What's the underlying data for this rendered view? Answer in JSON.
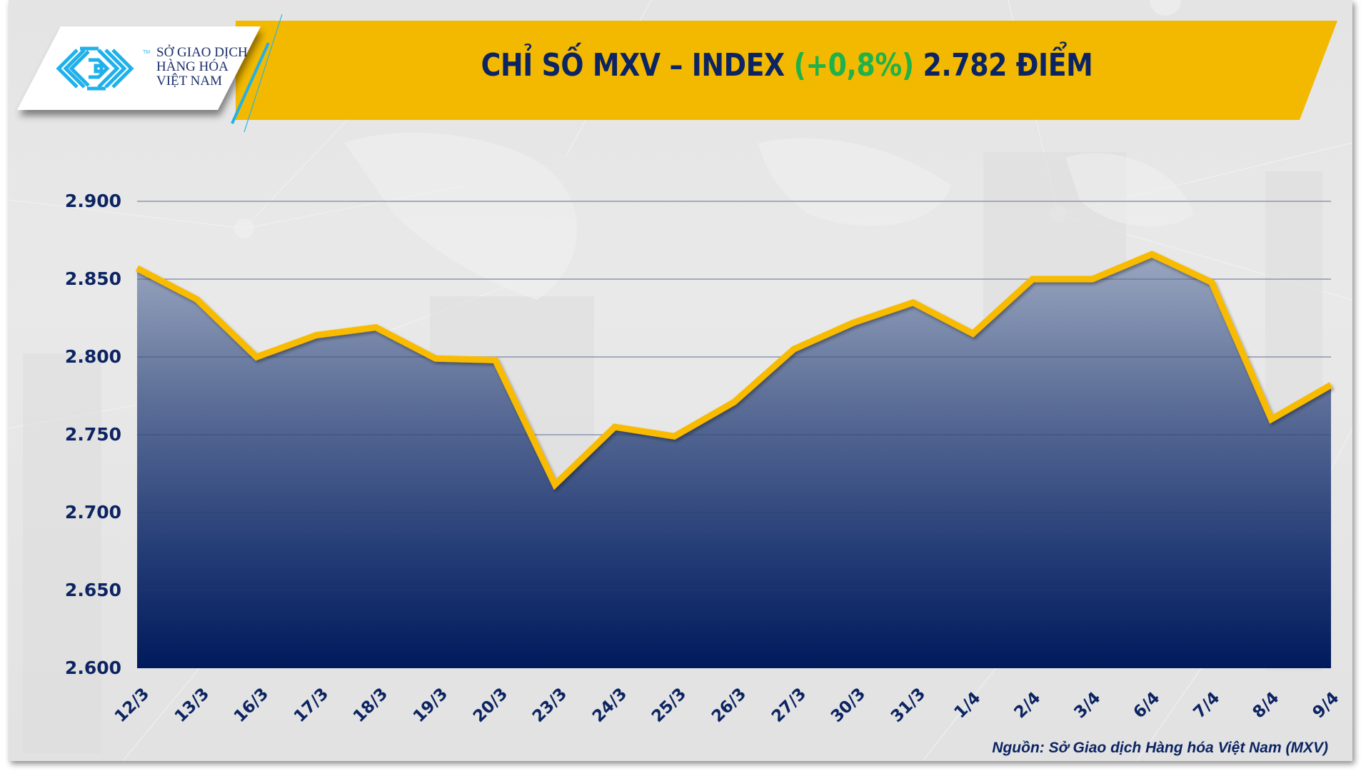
{
  "header": {
    "logo_lines": [
      "SỞ GIAO DỊCH",
      "HÀNG HÓA",
      "VIỆT NAM"
    ],
    "logo_tm": "TM",
    "title_prefix": "CHỈ SỐ MXV – INDEX ",
    "title_change": "(+0,8%)",
    "title_suffix": " 2.782 ĐIỂM"
  },
  "colors": {
    "banner": "#f2b900",
    "title_text": "#0c2462",
    "change_positive": "#1fb24a",
    "line": "#f8bb00",
    "area_top": "#96a3bd",
    "area_bottom": "#001a5c",
    "logo_blue": "#1fb1eb"
  },
  "footer": {
    "source": "Nguồn: Sở Giao dịch Hàng hóa Việt Nam (MXV)"
  },
  "chart_data": {
    "type": "area",
    "title": "CHỈ SỐ MXV – INDEX (+0,8%) 2.782 ĐIỂM",
    "xlabel": "",
    "ylabel": "",
    "ylim": [
      2600,
      2900
    ],
    "yticks": [
      "2.600",
      "2.650",
      "2.700",
      "2.750",
      "2.800",
      "2.850",
      "2.900"
    ],
    "grid": true,
    "legend": "none",
    "categories": [
      "12/3",
      "13/3",
      "16/3",
      "17/3",
      "18/3",
      "19/3",
      "20/3",
      "23/3",
      "24/3",
      "25/3",
      "26/3",
      "27/3",
      "30/3",
      "31/3",
      "1/4",
      "2/4",
      "3/4",
      "6/4",
      "7/4",
      "8/4",
      "9/4"
    ],
    "series": [
      {
        "name": "MXV-Index",
        "values": [
          2857,
          2837,
          2800,
          2814,
          2819,
          2799,
          2798,
          2718,
          2755,
          2749,
          2771,
          2805,
          2822,
          2835,
          2815,
          2850,
          2850,
          2866,
          2848,
          2760,
          2782
        ]
      }
    ]
  }
}
